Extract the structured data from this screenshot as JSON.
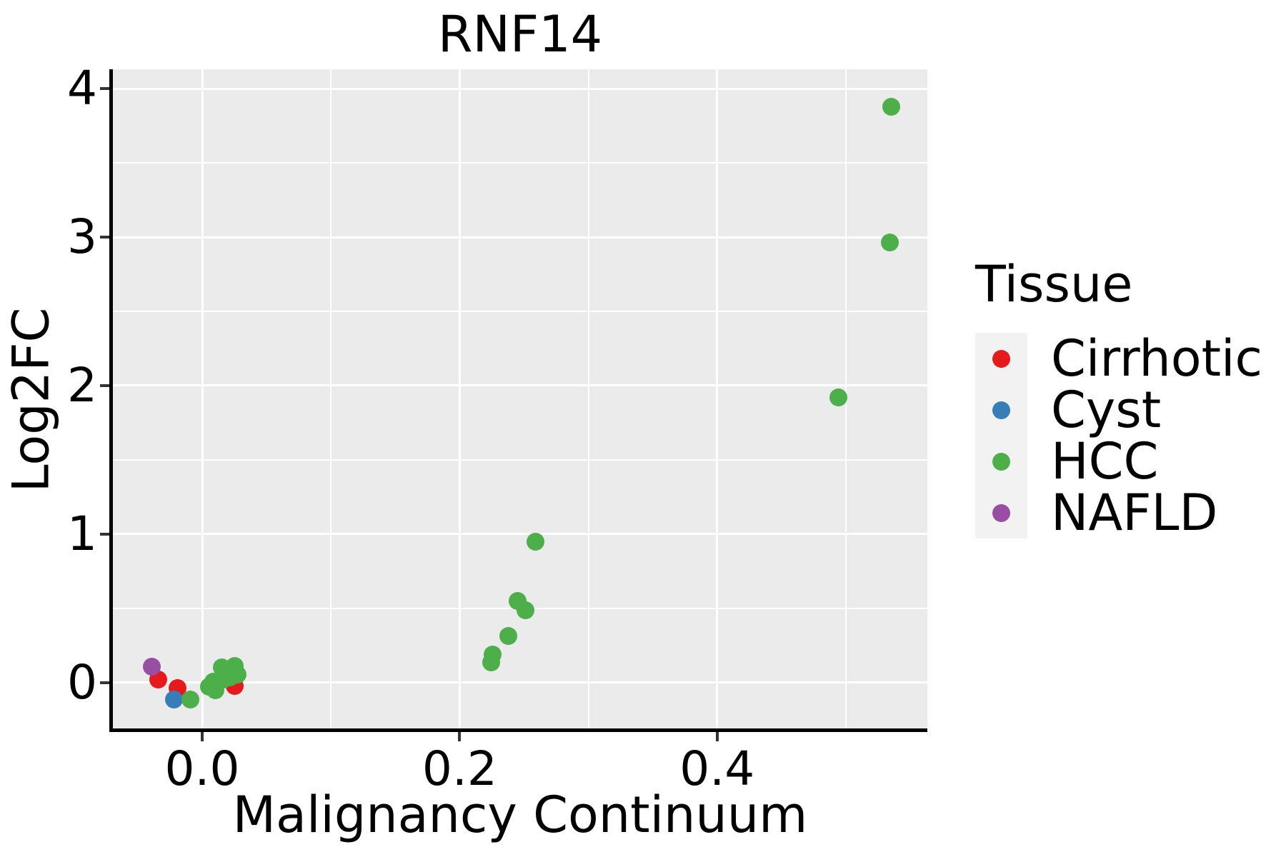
{
  "title": "RNF14",
  "colors": {
    "panel_background": "#EBEBEB",
    "gridline": "#FFFFFF",
    "axis_line": "#000000",
    "tick_mark": "#333333",
    "text": "#000000",
    "legend_key_background": "#F2F2F2"
  },
  "chart_data": {
    "type": "scatter",
    "title": "RNF14",
    "xlabel": "Malignancy Continuum",
    "ylabel": "Log2FC",
    "xlim": [
      -0.0694,
      0.5633
    ],
    "ylim": [
      -0.308,
      4.13
    ],
    "x_major_ticks": [
      0.0,
      0.2,
      0.4
    ],
    "x_tick_labels": [
      "0.0",
      "0.2",
      "0.4"
    ],
    "x_minor_ticks": [
      0.1,
      0.3,
      0.5
    ],
    "y_major_ticks": [
      0,
      1,
      2,
      3,
      4
    ],
    "y_tick_labels": [
      "0",
      "1",
      "2",
      "3",
      "4"
    ],
    "y_minor_ticks": [
      0.5,
      1.5,
      2.5,
      3.5
    ],
    "grid": true,
    "legend_title": "Tissue",
    "legend_position": "right",
    "series": [
      {
        "name": "Cirrhotic",
        "color": "#E41A1C",
        "points": [
          [
            -0.034,
            0.019
          ],
          [
            -0.019,
            -0.038
          ],
          [
            0.0255,
            -0.024
          ]
        ]
      },
      {
        "name": "Cyst",
        "color": "#377EB8",
        "points": [
          [
            -0.022,
            -0.115
          ]
        ]
      },
      {
        "name": "HCC",
        "color": "#4DAF4A",
        "points": [
          [
            -0.009,
            -0.115
          ],
          [
            0.015,
            0.101
          ],
          [
            0.025,
            0.115
          ],
          [
            0.0272,
            0.053
          ],
          [
            0.0216,
            0.038
          ],
          [
            0.0166,
            0.019
          ],
          [
            0.0083,
            0.005
          ],
          [
            0.0055,
            -0.029
          ],
          [
            0.0105,
            -0.053
          ],
          [
            0.2258,
            0.192
          ],
          [
            0.2242,
            0.135
          ],
          [
            0.238,
            0.317
          ],
          [
            0.245,
            0.548
          ],
          [
            0.251,
            0.486
          ],
          [
            0.259,
            0.947
          ],
          [
            0.494,
            1.923
          ],
          [
            0.534,
            2.966
          ],
          [
            0.535,
            3.876
          ]
        ]
      },
      {
        "name": "NAFLD",
        "color": "#984EA3",
        "points": [
          [
            -0.039,
            0.106
          ]
        ]
      }
    ]
  }
}
